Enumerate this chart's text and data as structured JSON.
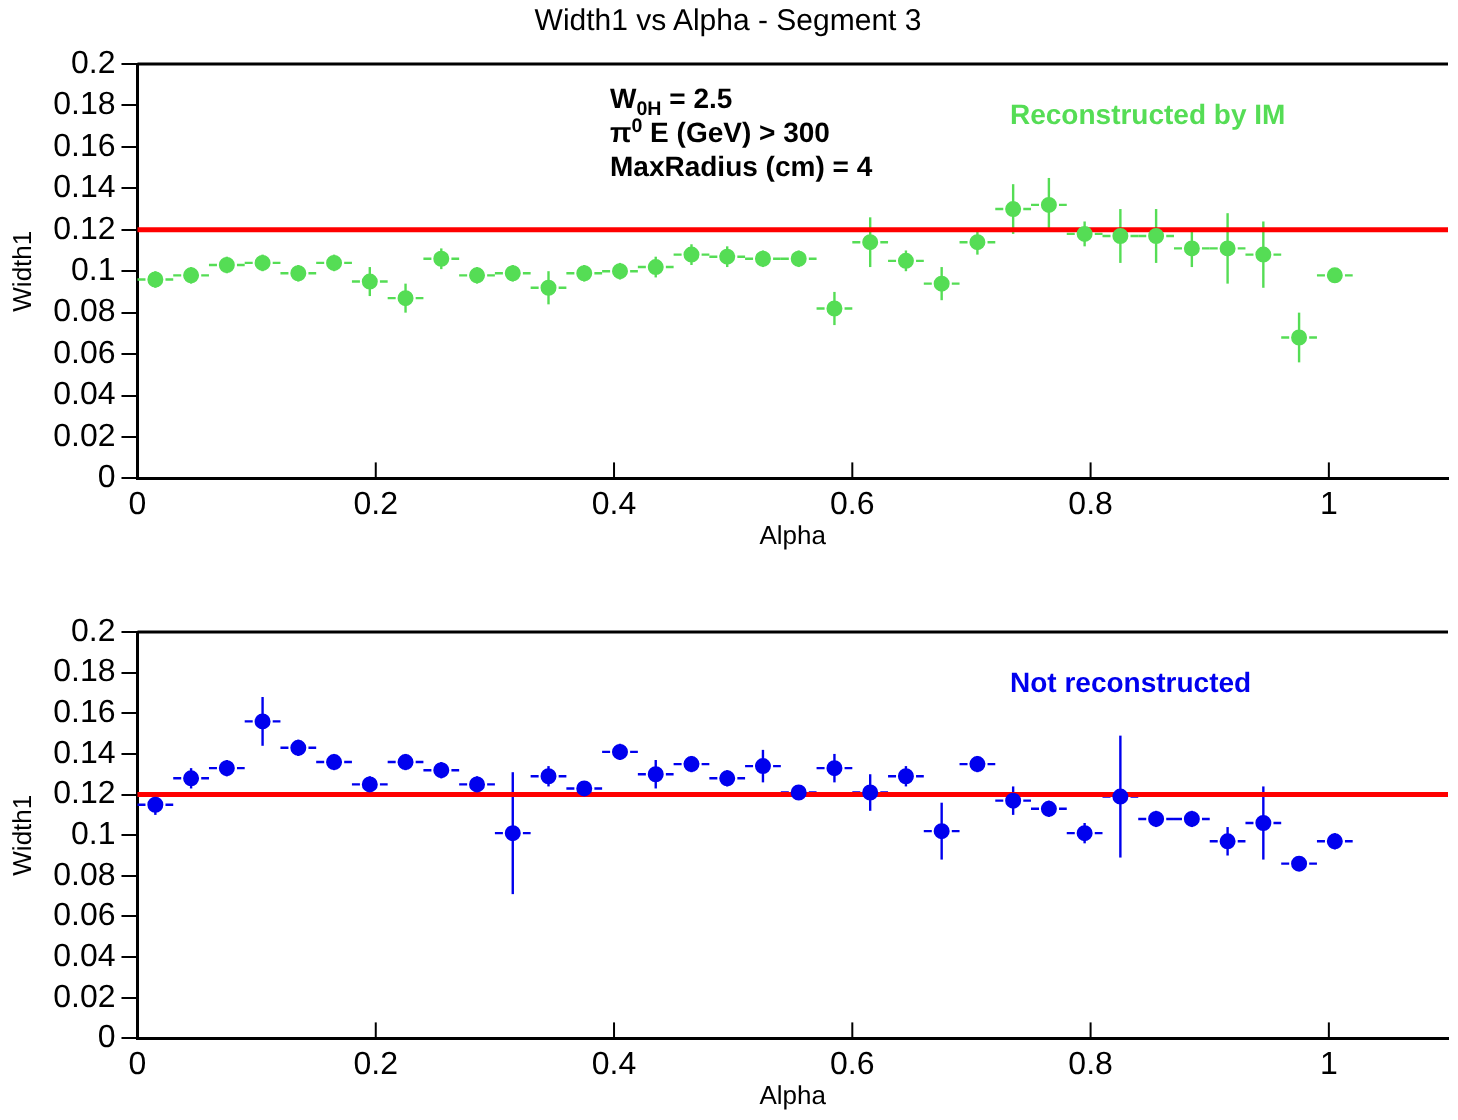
{
  "chart_data": [
    {
      "type": "scatter",
      "title": "Width1 vs Alpha - Segment 3",
      "xlabel": "Alpha",
      "ylabel": "Width1",
      "annotations": [
        "W$_{0H}$ = 2.5",
        "π$^{0}$ E (GeV) > 300",
        "MaxRadius (cm) = 4"
      ],
      "x": [
        0.015,
        0.045,
        0.075,
        0.105,
        0.135,
        0.165,
        0.195,
        0.225,
        0.255,
        0.285,
        0.315,
        0.345,
        0.375,
        0.405,
        0.435,
        0.465,
        0.495,
        0.525,
        0.555,
        0.585,
        0.615,
        0.645,
        0.675,
        0.705,
        0.735,
        0.765,
        0.795,
        0.825,
        0.855,
        0.885,
        0.915,
        0.945,
        0.975,
        1.005
      ],
      "series": [
        {
          "name": "Reconstructed by IM",
          "color": "#55dd55",
          "values": [
            0.096,
            0.098,
            0.103,
            0.104,
            0.099,
            0.104,
            0.095,
            0.087,
            0.106,
            0.098,
            0.099,
            0.092,
            0.099,
            0.1,
            0.102,
            0.108,
            0.107,
            0.106,
            0.106,
            0.082,
            0.114,
            0.105,
            0.094,
            0.114,
            0.13,
            0.132,
            0.118,
            0.117,
            0.117,
            0.111,
            0.111,
            0.108,
            0.068,
            0.098
          ],
          "errors": [
            0.004,
            0.004,
            0.004,
            0.004,
            0.004,
            0.004,
            0.007,
            0.007,
            0.005,
            0.004,
            0.004,
            0.008,
            0.004,
            0.004,
            0.005,
            0.005,
            0.005,
            0.004,
            0.004,
            0.008,
            0.012,
            0.005,
            0.008,
            0.006,
            0.012,
            0.013,
            0.006,
            0.013,
            0.013,
            0.009,
            0.017,
            0.016,
            0.012,
            0.003
          ],
          "xerrors": [
            0.015,
            0.015,
            0.015,
            0.015,
            0.015,
            0.015,
            0.015,
            0.015,
            0.015,
            0.015,
            0.015,
            0.015,
            0.015,
            0.015,
            0.015,
            0.015,
            0.015,
            0.015,
            0.015,
            0.015,
            0.015,
            0.015,
            0.015,
            0.015,
            0.015,
            0.015,
            0.015,
            0.015,
            0.015,
            0.015,
            0.015,
            0.015,
            0.015,
            0.015
          ]
        }
      ],
      "ref_lines": [
        {
          "axis": "y",
          "value": 0.12,
          "color": "#ff0000"
        }
      ],
      "xlim": [
        0,
        1.1
      ],
      "xticks": [
        0,
        0.2,
        0.4,
        0.6,
        0.8,
        1
      ],
      "ylim": [
        0,
        0.2
      ],
      "yticks": [
        0,
        0.02,
        0.04,
        0.06,
        0.08,
        0.1,
        0.12,
        0.14,
        0.16,
        0.18,
        0.2
      ],
      "marker": "circle",
      "grid": false
    },
    {
      "type": "scatter",
      "xlabel": "Alpha",
      "ylabel": "Width1",
      "x": [
        0.015,
        0.045,
        0.075,
        0.105,
        0.135,
        0.165,
        0.195,
        0.225,
        0.255,
        0.285,
        0.315,
        0.345,
        0.375,
        0.405,
        0.435,
        0.465,
        0.495,
        0.525,
        0.555,
        0.585,
        0.615,
        0.645,
        0.675,
        0.705,
        0.735,
        0.765,
        0.795,
        0.825,
        0.855,
        0.885,
        0.915,
        0.945,
        0.975,
        1.005
      ],
      "series": [
        {
          "name": "Not reconstructed",
          "color": "#0000ee",
          "values": [
            0.115,
            0.128,
            0.133,
            0.156,
            0.143,
            0.136,
            0.125,
            0.136,
            0.132,
            0.125,
            0.101,
            0.129,
            0.123,
            0.141,
            0.13,
            0.135,
            0.128,
            0.134,
            0.121,
            0.133,
            0.121,
            0.129,
            0.102,
            0.135,
            0.117,
            0.113,
            0.101,
            0.119,
            0.108,
            0.108,
            0.097,
            0.106,
            0.086,
            0.097
          ],
          "errors": [
            0.005,
            0.005,
            0.004,
            0.012,
            0.004,
            0.004,
            0.004,
            0.004,
            0.004,
            0.004,
            0.03,
            0.005,
            0.003,
            0.004,
            0.007,
            0.004,
            0.004,
            0.008,
            0.003,
            0.007,
            0.009,
            0.005,
            0.014,
            0.004,
            0.007,
            0.004,
            0.005,
            0.03,
            0.004,
            0.004,
            0.007,
            0.018,
            0.003,
            0.004
          ],
          "xerrors": [
            0.015,
            0.015,
            0.015,
            0.015,
            0.015,
            0.015,
            0.015,
            0.015,
            0.015,
            0.015,
            0.015,
            0.015,
            0.015,
            0.015,
            0.015,
            0.015,
            0.015,
            0.015,
            0.015,
            0.015,
            0.015,
            0.015,
            0.015,
            0.015,
            0.015,
            0.015,
            0.015,
            0.015,
            0.015,
            0.015,
            0.015,
            0.015,
            0.015,
            0.015
          ]
        }
      ],
      "ref_lines": [
        {
          "axis": "y",
          "value": 0.12,
          "color": "#ff0000"
        }
      ],
      "xlim": [
        0,
        1.1
      ],
      "xticks": [
        0,
        0.2,
        0.4,
        0.6,
        0.8,
        1
      ],
      "ylim": [
        0,
        0.2
      ],
      "yticks": [
        0,
        0.02,
        0.04,
        0.06,
        0.08,
        0.1,
        0.12,
        0.14,
        0.16,
        0.18,
        0.2
      ],
      "marker": "circle",
      "grid": false
    }
  ]
}
